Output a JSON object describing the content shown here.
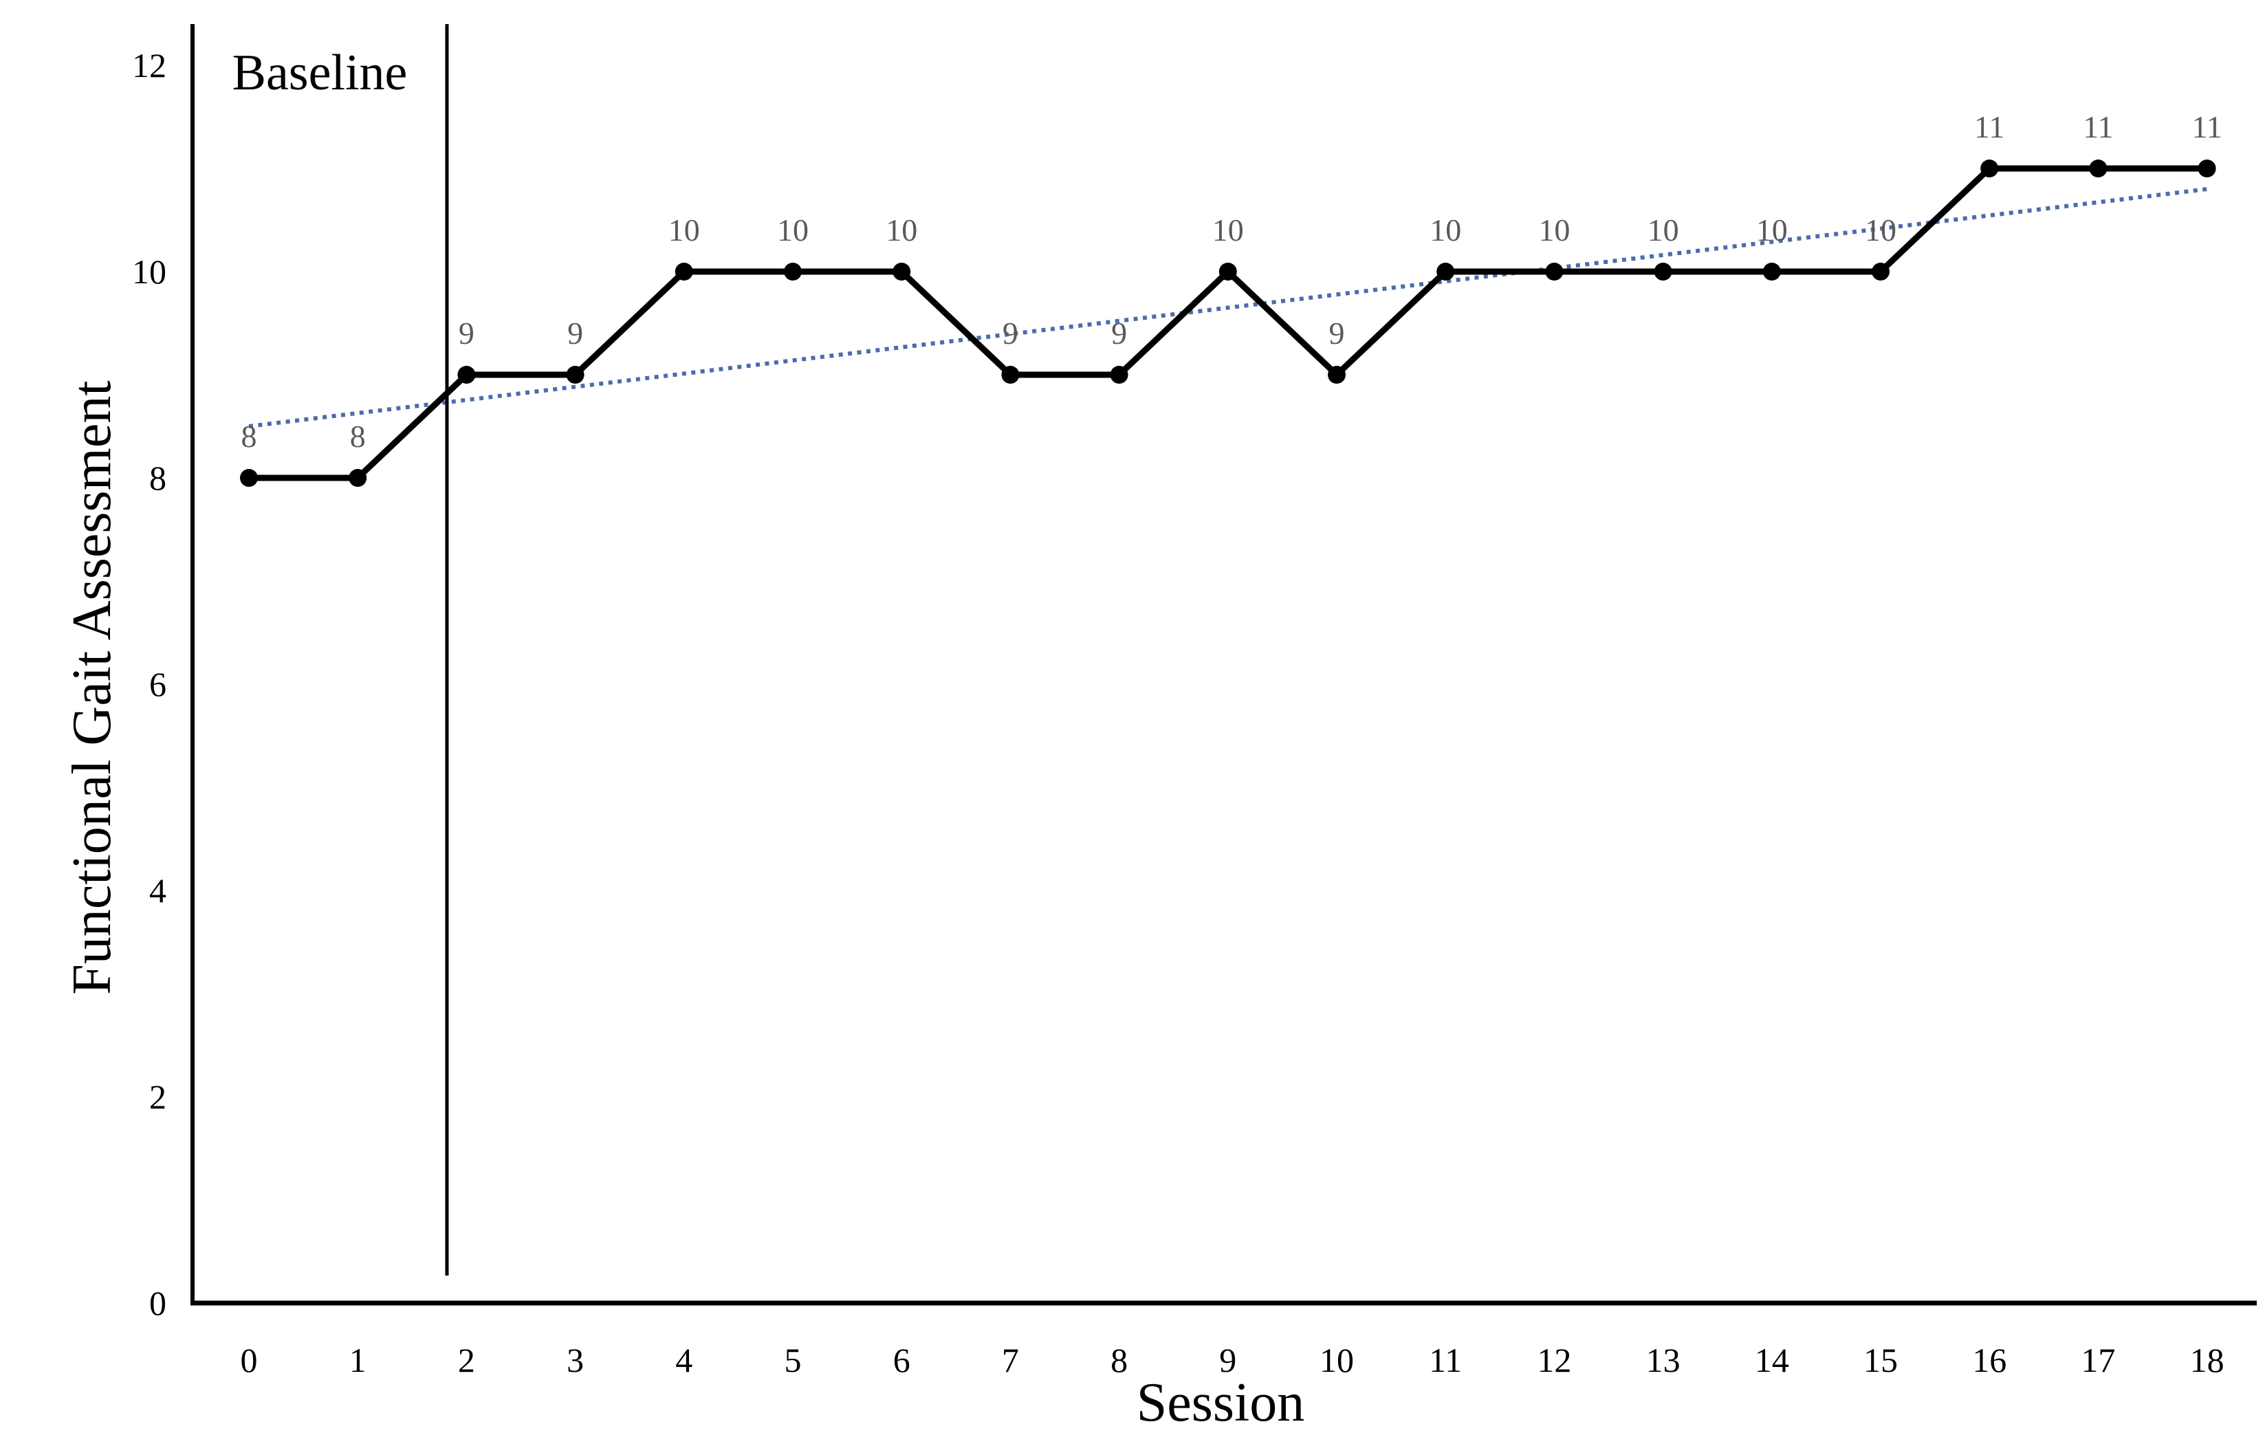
{
  "chart_data": {
    "type": "line",
    "title": "",
    "xlabel": "Session",
    "ylabel": "Functional Gait Assessment",
    "x": [
      0,
      1,
      2,
      3,
      4,
      5,
      6,
      7,
      8,
      9,
      10,
      11,
      12,
      13,
      14,
      15,
      16,
      17,
      18
    ],
    "values": [
      8,
      8,
      9,
      9,
      10,
      10,
      10,
      9,
      9,
      10,
      9,
      10,
      10,
      10,
      10,
      10,
      11,
      11,
      11
    ],
    "point_labels": [
      "8",
      "8",
      "9",
      "9",
      "10",
      "10",
      "10",
      "9",
      "9",
      "10",
      "9",
      "10",
      "10",
      "10",
      "10",
      "10",
      "11",
      "11",
      "11"
    ],
    "xticks": [
      0,
      1,
      2,
      3,
      4,
      5,
      6,
      7,
      8,
      9,
      10,
      11,
      12,
      13,
      14,
      15,
      16,
      17,
      18
    ],
    "yticks": [
      0,
      2,
      4,
      6,
      8,
      10,
      12
    ],
    "ylim": [
      0,
      12
    ],
    "xlim": [
      0,
      18
    ],
    "grid": "off",
    "legend": "none",
    "series_color": "#000000",
    "point_label_color": "#595959",
    "annotations": {
      "baseline_label": "Baseline",
      "baseline_separator_x": 1.82
    },
    "trendline": {
      "type": "linear",
      "style": "dotted",
      "color": "#4a6dac",
      "y_at_x_start": 8.5,
      "y_at_x_end": 10.8
    }
  }
}
